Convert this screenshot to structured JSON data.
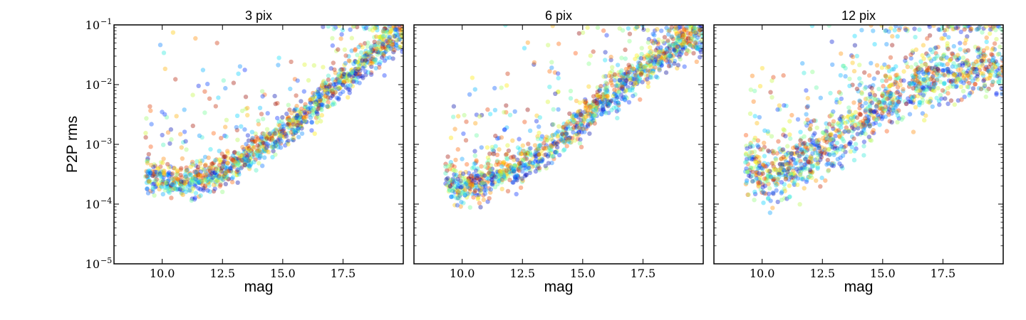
{
  "chart_data": [
    {
      "type": "scatter",
      "title": "3 pix",
      "xlabel": "mag",
      "ylabel": "P2P rms",
      "xlim": [
        8.0,
        20.0
      ],
      "ylim": [
        1e-05,
        0.1
      ],
      "yscale": "log",
      "x_ticks": [
        "10.0",
        "12.5",
        "15.0",
        "17.5"
      ],
      "y_ticks": [
        {
          "base": "10",
          "exp": "−5"
        },
        {
          "base": "10",
          "exp": "−4"
        },
        {
          "base": "10",
          "exp": "−3"
        },
        {
          "base": "10",
          "exp": "−2"
        },
        {
          "base": "10",
          "exp": "−1"
        }
      ],
      "grid": false,
      "legend": "none",
      "point_colormap": "jet",
      "trend": {
        "description": "floor near 2.5e-4 at mag 10–12, rising to ~8e-2 at mag 19.5",
        "x": [
          9.5,
          10.0,
          11.0,
          12.0,
          13.0,
          14.0,
          15.0,
          16.0,
          17.0,
          18.0,
          19.0,
          19.8
        ],
        "y": [
          0.0003,
          0.00025,
          0.00022,
          0.00028,
          0.00045,
          0.0008,
          0.0016,
          0.0035,
          0.008,
          0.018,
          0.04,
          0.07
        ]
      }
    },
    {
      "type": "scatter",
      "title": "6 pix",
      "xlabel": "mag",
      "xlim": [
        8.0,
        20.0
      ],
      "ylim": [
        1e-05,
        0.1
      ],
      "yscale": "log",
      "x_ticks": [
        "10.0",
        "12.5",
        "15.0",
        "17.5"
      ],
      "grid": false,
      "legend": "none",
      "point_colormap": "jet",
      "trend": {
        "description": "floor near 2e-4 at mag 10, rising to ~6e-2 at mag 19.5",
        "x": [
          9.5,
          10.0,
          11.0,
          12.0,
          13.0,
          14.0,
          15.0,
          16.0,
          17.0,
          18.0,
          19.0,
          19.8
        ],
        "y": [
          0.00025,
          0.0002,
          0.00025,
          0.00035,
          0.0006,
          0.0012,
          0.0025,
          0.006,
          0.013,
          0.025,
          0.045,
          0.06
        ]
      }
    },
    {
      "type": "scatter",
      "title": "12 pix",
      "xlabel": "mag",
      "xlim": [
        8.0,
        20.0
      ],
      "ylim": [
        1e-05,
        0.1
      ],
      "yscale": "log",
      "x_ticks": [
        "10.0",
        "12.5",
        "15.0",
        "17.5"
      ],
      "grid": false,
      "legend": "none",
      "point_colormap": "jet",
      "trend": {
        "description": "floor near 3e-4 at mag 10, rising to ~1.5e-2 around mag 17–19 with large scatter",
        "x": [
          9.5,
          10.0,
          11.0,
          12.0,
          13.0,
          14.0,
          15.0,
          16.0,
          17.0,
          18.0,
          19.0,
          19.8
        ],
        "y": [
          0.00035,
          0.0003,
          0.00038,
          0.0006,
          0.0011,
          0.0022,
          0.0045,
          0.008,
          0.012,
          0.015,
          0.016,
          0.017
        ]
      }
    }
  ]
}
